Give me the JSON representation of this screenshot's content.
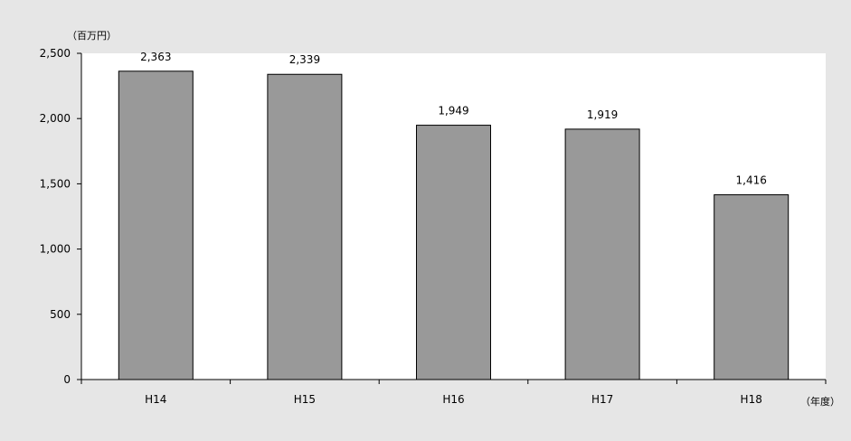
{
  "chart_data": {
    "type": "bar",
    "title": "",
    "xlabel": "",
    "ylabel": "",
    "y_unit": "（百万円）",
    "x_unit": "（年度）",
    "categories": [
      "H14",
      "H15",
      "H16",
      "H17",
      "H18"
    ],
    "values": [
      2363,
      2339,
      1949,
      1919,
      1416
    ],
    "data_labels": [
      "2,363",
      "2,339",
      "1,949",
      "1,919",
      "1,416"
    ],
    "ylim": [
      0,
      2500
    ],
    "yticks": [
      0,
      500,
      1000,
      1500,
      2000,
      2500
    ],
    "ytick_labels": [
      "0",
      "500",
      "1,000",
      "1,500",
      "2,000",
      "2,500"
    ],
    "grid": false,
    "legend": "none",
    "colors": {
      "bar_fill": "#999999",
      "bar_stroke": "#000000",
      "plot_background": "#ffffff",
      "page_background": "#e6e6e6"
    }
  }
}
